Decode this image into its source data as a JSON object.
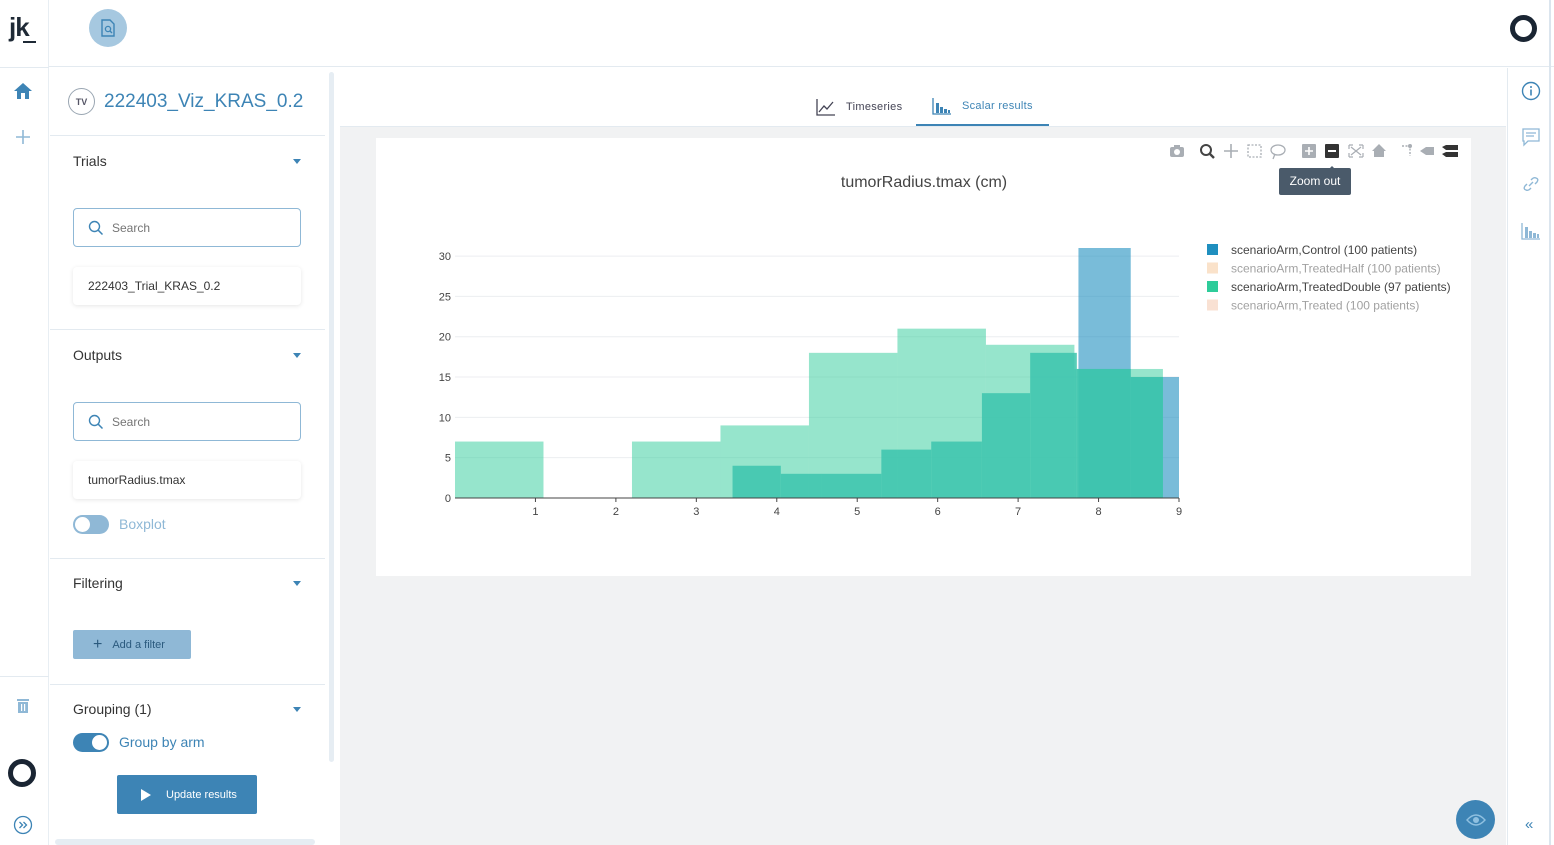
{
  "app": {
    "logo": "jk"
  },
  "project": {
    "badge": "TV",
    "title": "222403_Viz_KRAS_0.2"
  },
  "sidebar": {
    "trials": {
      "title": "Trials",
      "search_placeholder": "Search",
      "items": [
        "222403_Trial_KRAS_0.2"
      ]
    },
    "outputs": {
      "title": "Outputs",
      "search_placeholder": "Search",
      "items": [
        "tumorRadius.tmax"
      ],
      "boxplot_label": "Boxplot",
      "boxplot_on": false
    },
    "filtering": {
      "title": "Filtering",
      "add_filter_label": "Add a filter"
    },
    "grouping": {
      "title": "Grouping (1)",
      "group_by_arm_label": "Group by arm",
      "group_by_arm_on": true
    },
    "update_label": "Update results"
  },
  "tabs": [
    {
      "label": "Timeseries",
      "active": false
    },
    {
      "label": "Scalar results",
      "active": true
    }
  ],
  "modebar": {
    "tooltip": "Zoom out"
  },
  "chart_data": {
    "type": "bar",
    "title": "tumorRadius.tmax (cm)",
    "xlabel": "",
    "ylabel": "",
    "xlim": [
      0,
      9
    ],
    "ylim": [
      0,
      31
    ],
    "xticks": [
      1,
      2,
      3,
      4,
      5,
      6,
      7,
      8,
      9
    ],
    "yticks": [
      0,
      5,
      10,
      15,
      20,
      25,
      30
    ],
    "grid": true,
    "legend_position": "top-right",
    "series": [
      {
        "name": "scenarioArm,Control (100 patients)",
        "color": "#1f8fbf",
        "opacity": 0.6,
        "visible": true,
        "bins": [
          {
            "x0": 7.75,
            "x1": 8.4,
            "value": 31
          },
          {
            "x0": 8.4,
            "x1": 9.0,
            "value": 15
          }
        ]
      },
      {
        "name": "scenarioArm,TreatedHalf (100 patients)",
        "color": "#f7c796",
        "visible": false,
        "bins": []
      },
      {
        "name": "scenarioArm,TreatedDouble (97 patients)",
        "color": "#2ecc9a",
        "opacity": 0.5,
        "visible": true,
        "bins": [
          {
            "x0": 0.0,
            "x1": 1.1,
            "value": 7
          },
          {
            "x0": 1.1,
            "x1": 2.2,
            "value": 0
          },
          {
            "x0": 2.2,
            "x1": 3.3,
            "value": 7
          },
          {
            "x0": 3.3,
            "x1": 4.4,
            "value": 9
          },
          {
            "x0": 4.4,
            "x1": 5.5,
            "value": 18
          },
          {
            "x0": 5.5,
            "x1": 6.6,
            "value": 21
          },
          {
            "x0": 6.6,
            "x1": 7.7,
            "value": 19
          },
          {
            "x0": 7.7,
            "x1": 8.8,
            "value": 16
          }
        ]
      },
      {
        "name": "scenarioArm,Treated (100 patients)",
        "color": "#f4c5a8",
        "visible": false,
        "bins": []
      },
      {
        "name": "_overlap",
        "color": "#3cc4ad",
        "opacity": 0.85,
        "visible": true,
        "legend": false,
        "bins": [
          {
            "x0": 3.45,
            "x1": 4.05,
            "value": 4
          },
          {
            "x0": 4.05,
            "x1": 4.55,
            "value": 3
          },
          {
            "x0": 4.55,
            "x1": 5.3,
            "value": 3
          },
          {
            "x0": 5.3,
            "x1": 5.92,
            "value": 6
          },
          {
            "x0": 5.92,
            "x1": 6.55,
            "value": 7
          },
          {
            "x0": 6.55,
            "x1": 7.15,
            "value": 13
          },
          {
            "x0": 7.15,
            "x1": 7.73,
            "value": 18
          },
          {
            "x0": 7.73,
            "x1": 8.4,
            "value": 16
          },
          {
            "x0": 8.4,
            "x1": 8.8,
            "value": 15
          }
        ]
      }
    ]
  }
}
